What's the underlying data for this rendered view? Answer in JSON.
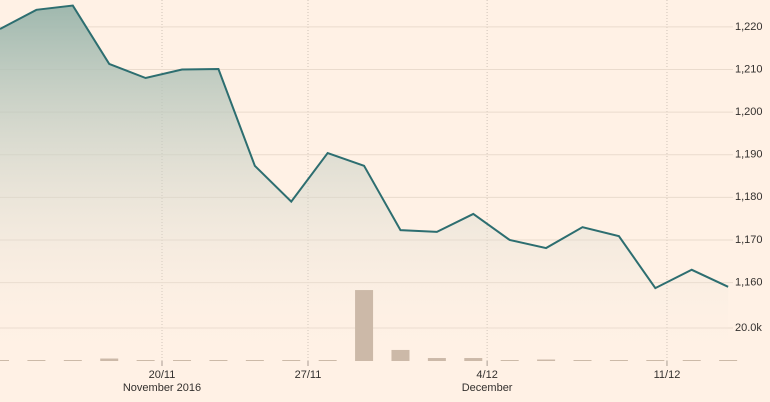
{
  "chart_data": {
    "type": "line",
    "x": [
      0,
      1,
      2,
      3,
      4,
      5,
      6,
      7,
      8,
      9,
      10,
      11,
      12,
      13,
      14,
      15,
      16,
      17,
      18,
      19,
      20
    ],
    "series": [
      {
        "color": "#2d6e70",
        "values": [
          1219.5,
          1224,
          1225,
          1211.3,
          1208,
          1210,
          1210.1,
          1187.4,
          1179,
          1190.4,
          1187.4,
          1172.3,
          1171.9,
          1176.1,
          1170,
          1168.1,
          1173,
          1170.9,
          1158.7,
          1163,
          1159
        ]
      },
      {
        "type": "bar",
        "axis": "y2",
        "color": "#ccb9a8",
        "values": [
          600,
          600,
          600,
          1500,
          600,
          600,
          600,
          600,
          600,
          600,
          43000,
          6700,
          1800,
          1800,
          600,
          900,
          600,
          600,
          600,
          600,
          600
        ]
      }
    ],
    "xlim": [
      0,
      21.15
    ],
    "xticks": [
      {
        "value": 4.45,
        "label": "20/11"
      },
      {
        "value": 8.46,
        "label": "27/11"
      },
      {
        "value": 13.38,
        "label": "4/12"
      },
      {
        "value": 18.32,
        "label": "11/12"
      }
    ],
    "x_sublabels": [
      {
        "value": 4.45,
        "label": "November 2016"
      },
      {
        "value": 13.38,
        "label": "December"
      }
    ],
    "ylim": [
      1141.6,
      1226.3
    ],
    "yticks": [
      {
        "value": 1160,
        "label": "1,160"
      },
      {
        "value": 1170,
        "label": "1,170"
      },
      {
        "value": 1180,
        "label": "1,180"
      },
      {
        "value": 1190,
        "label": "1,190"
      },
      {
        "value": 1200,
        "label": "1,200"
      },
      {
        "value": 1210,
        "label": "1,210"
      },
      {
        "value": 1220,
        "label": "1,220"
      }
    ],
    "y2lim": [
      0,
      218800
    ],
    "y2ticks": [
      {
        "value": 20000,
        "label": "20.0k"
      }
    ],
    "grid": true
  }
}
